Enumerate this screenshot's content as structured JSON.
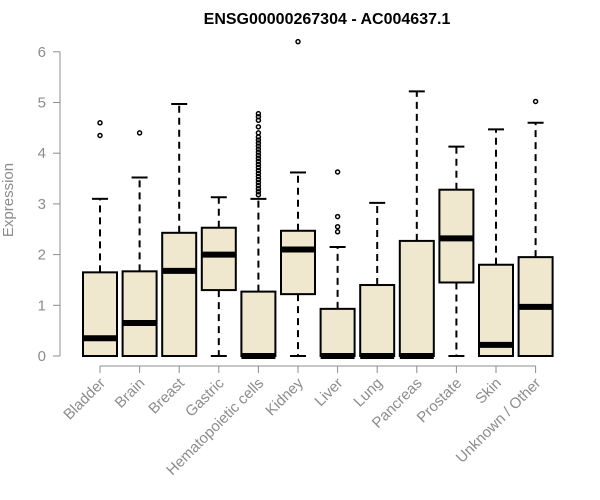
{
  "chart_data": {
    "type": "box",
    "title": "ENSG00000267304 - AC004637.1",
    "ylabel": "Expression",
    "xlabel": "",
    "ylim": [
      0,
      6.2
    ],
    "yticks": [
      0,
      1,
      2,
      3,
      4,
      5,
      6
    ],
    "grid": false,
    "box_fill": "#efe8cf",
    "box_stroke": "#000000",
    "tick_color": "#8c8c8c",
    "categories": [
      "Bladder",
      "Brain",
      "Breast",
      "Gastric",
      "Hematopoietic cells",
      "Kidney",
      "Liver",
      "Lung",
      "Pancreas",
      "Prostate",
      "Skin",
      "Unknown / Other"
    ],
    "boxes": [
      {
        "name": "Bladder",
        "whisker_low": 0,
        "q1": 0,
        "median": 0.35,
        "q3": 1.65,
        "whisker_high": 3.1,
        "outliers": [
          4.35,
          4.6
        ]
      },
      {
        "name": "Brain",
        "whisker_low": 0,
        "q1": 0,
        "median": 0.65,
        "q3": 1.67,
        "whisker_high": 3.52,
        "outliers": [
          4.4
        ]
      },
      {
        "name": "Breast",
        "whisker_low": 0,
        "q1": 0,
        "median": 1.68,
        "q3": 2.43,
        "whisker_high": 4.97,
        "outliers": []
      },
      {
        "name": "Gastric",
        "whisker_low": 0,
        "q1": 1.3,
        "median": 2.0,
        "q3": 2.53,
        "whisker_high": 3.13,
        "outliers": []
      },
      {
        "name": "Hematopoietic cells",
        "whisker_low": 0,
        "q1": 0,
        "median": 0,
        "q3": 1.27,
        "whisker_high": 3.1,
        "outliers": [
          3.18,
          3.24,
          3.3,
          3.36,
          3.42,
          3.48,
          3.54,
          3.6,
          3.66,
          3.72,
          3.78,
          3.84,
          3.9,
          3.96,
          4.02,
          4.08,
          4.14,
          4.2,
          4.26,
          4.32,
          4.4,
          4.52,
          4.65,
          4.72,
          4.78
        ]
      },
      {
        "name": "Kidney",
        "whisker_low": 0,
        "q1": 1.22,
        "median": 2.1,
        "q3": 2.47,
        "whisker_high": 3.62,
        "outliers": [
          6.2
        ]
      },
      {
        "name": "Liver",
        "whisker_low": 0,
        "q1": 0,
        "median": 0,
        "q3": 0.93,
        "whisker_high": 2.15,
        "outliers": [
          2.45,
          2.55,
          2.75,
          3.63
        ]
      },
      {
        "name": "Lung",
        "whisker_low": 0,
        "q1": 0,
        "median": 0,
        "q3": 1.4,
        "whisker_high": 3.02,
        "outliers": []
      },
      {
        "name": "Pancreas",
        "whisker_low": 0,
        "q1": 0,
        "median": 0,
        "q3": 2.27,
        "whisker_high": 5.22,
        "outliers": []
      },
      {
        "name": "Prostate",
        "whisker_low": 0,
        "q1": 1.45,
        "median": 2.32,
        "q3": 3.28,
        "whisker_high": 4.13,
        "outliers": []
      },
      {
        "name": "Skin",
        "whisker_low": 0,
        "q1": 0,
        "median": 0.22,
        "q3": 1.8,
        "whisker_high": 4.47,
        "outliers": []
      },
      {
        "name": "Unknown / Other",
        "whisker_low": 0,
        "q1": 0,
        "median": 0.97,
        "q3": 1.95,
        "whisker_high": 4.6,
        "outliers": [
          5.02
        ]
      }
    ]
  }
}
